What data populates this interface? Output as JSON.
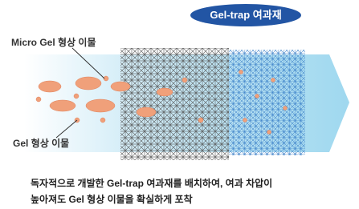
{
  "badge": "Gel-trap 여과재",
  "labels": {
    "micro_gel": "Micro Gel 형상 이물",
    "gel": "Gel 형상 이물"
  },
  "caption": [
    "독자적으로 개발한 Gel-trap 여과재를 배치하여, 여과 차압이",
    "높아져도 Gel 형상 이물을 확실하게 포착"
  ]
}
